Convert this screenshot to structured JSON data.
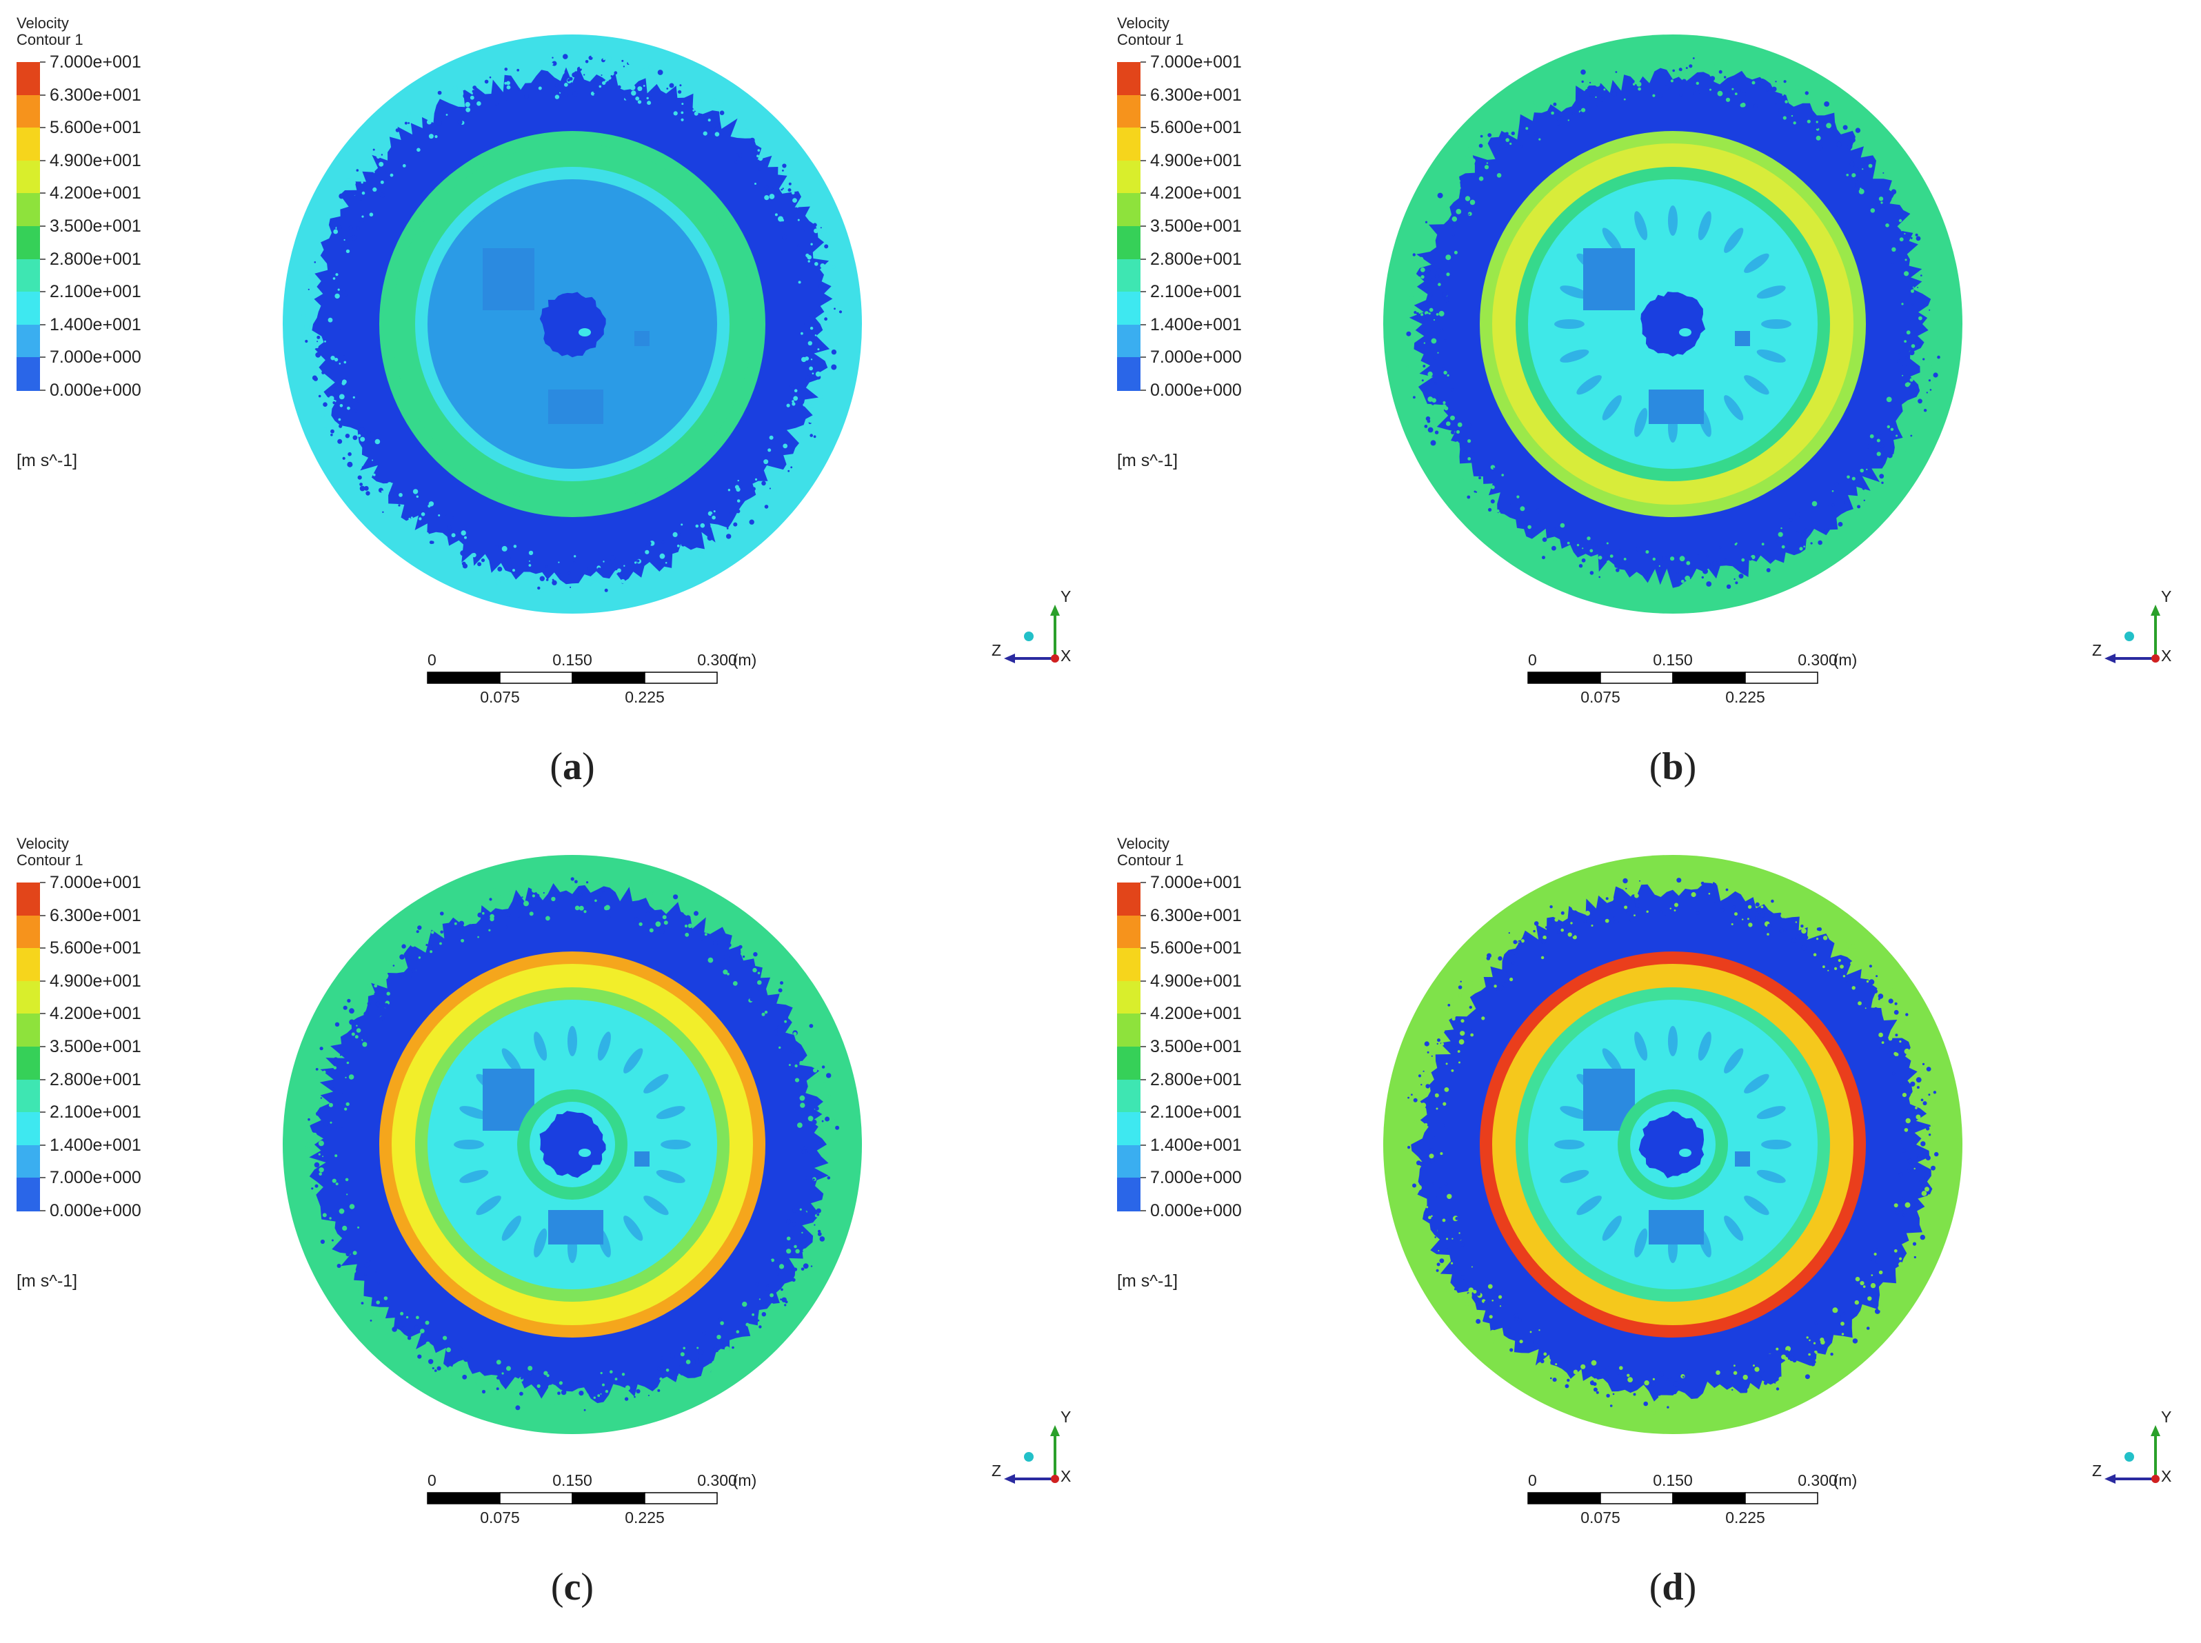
{
  "panels": [
    {
      "id": "a",
      "caption_letter": "a",
      "legend_title_1": "Velocity",
      "legend_title_2": "Contour 1",
      "ticks": [
        "7.000e+001",
        "6.300e+001",
        "5.600e+001",
        "4.900e+001",
        "4.200e+001",
        "3.500e+001",
        "2.800e+001",
        "2.100e+001",
        "1.400e+001",
        "7.000e+000",
        "0.000e+000"
      ],
      "unit": "[m s^-1]",
      "scalebar": {
        "top": [
          "0",
          "0.150",
          "0.300",
          "(m)"
        ],
        "bottom": [
          "0.075",
          "0.225"
        ]
      },
      "axis": {
        "y": "Y",
        "z": "Z",
        "x": "X"
      },
      "field": {
        "outer": "#3fe0e8",
        "dark": "#1a3fe0",
        "ring1": "#36d98c",
        "ring2": "#36d98c",
        "ring3": "#3fe0e8",
        "core": "#2b9be6",
        "hub": "#1a3fe0"
      }
    },
    {
      "id": "b",
      "caption_letter": "b",
      "legend_title_1": "Velocity",
      "legend_title_2": "Contour 1",
      "ticks": [
        "7.000e+001",
        "6.300e+001",
        "5.600e+001",
        "4.900e+001",
        "4.200e+001",
        "3.500e+001",
        "2.800e+001",
        "2.100e+001",
        "1.400e+001",
        "7.000e+000",
        "0.000e+000"
      ],
      "unit": "[m s^-1]",
      "scalebar": {
        "top": [
          "0",
          "0.150",
          "0.300",
          "(m)"
        ],
        "bottom": [
          "0.075",
          "0.225"
        ]
      },
      "axis": {
        "y": "Y",
        "z": "Z",
        "x": "X"
      },
      "field": {
        "outer": "#36d98c",
        "dark": "#1a3fe0",
        "ring1": "#9be84a",
        "ring2": "#d8ec3a",
        "ring3": "#36d98c",
        "core": "#3fe8e8",
        "hub": "#1a3fe0"
      }
    },
    {
      "id": "c",
      "caption_letter": "c",
      "legend_title_1": "Velocity",
      "legend_title_2": "Contour 1",
      "ticks": [
        "7.000e+001",
        "6.300e+001",
        "5.600e+001",
        "4.900e+001",
        "4.200e+001",
        "3.500e+001",
        "2.800e+001",
        "2.100e+001",
        "1.400e+001",
        "7.000e+000",
        "0.000e+000"
      ],
      "unit": "[m s^-1]",
      "scalebar": {
        "top": [
          "0",
          "0.150",
          "0.300",
          "(m)"
        ],
        "bottom": [
          "0.075",
          "0.225"
        ]
      },
      "axis": {
        "y": "Y",
        "z": "Z",
        "x": "X"
      },
      "field": {
        "outer": "#36d98c",
        "dark": "#1a3fe0",
        "ring1": "#f5a61c",
        "ring2": "#f2ee2a",
        "ring3": "#7fe45a",
        "core": "#3fe8e8",
        "hub": "#1a3fe0"
      }
    },
    {
      "id": "d",
      "caption_letter": "d",
      "legend_title_1": "Velocity",
      "legend_title_2": "Contour 1",
      "ticks": [
        "7.000e+001",
        "6.300e+001",
        "5.600e+001",
        "4.900e+001",
        "4.200e+001",
        "3.500e+001",
        "2.800e+001",
        "2.100e+001",
        "1.400e+001",
        "7.000e+000",
        "0.000e+000"
      ],
      "unit": "[m s^-1]",
      "scalebar": {
        "top": [
          "0",
          "0.150",
          "0.300",
          "(m)"
        ],
        "bottom": [
          "0.075",
          "0.225"
        ]
      },
      "axis": {
        "y": "Y",
        "z": "Z",
        "x": "X"
      },
      "field": {
        "outer": "#7fe24a",
        "dark": "#1a3fe0",
        "ring1": "#ea3e1c",
        "ring2": "#f5c81c",
        "ring3": "#3fe09a",
        "core": "#3fe8e8",
        "hub": "#1a3fe0"
      }
    }
  ],
  "colormap": [
    "#e2451a",
    "#f6931c",
    "#f6d51c",
    "#d9ee2c",
    "#8ee23c",
    "#36d058",
    "#3ee6b2",
    "#3ee8f0",
    "#3aaef0",
    "#2a66e8",
    "#1a2fd8"
  ]
}
